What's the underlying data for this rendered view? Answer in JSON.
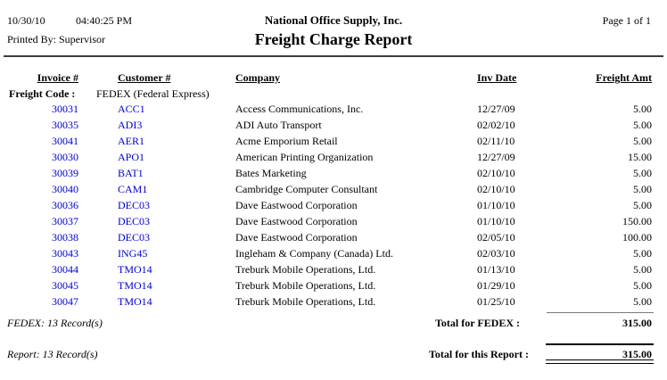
{
  "header": {
    "date": "10/30/10",
    "time": "04:40:25 PM",
    "printed_by": "Printed By: Supervisor",
    "company_name": "National Office Supply, Inc.",
    "report_title": "Freight Charge Report",
    "page_info": "Page 1 of 1"
  },
  "table": {
    "columns": [
      "Invoice #",
      "Customer #",
      "Company",
      "Inv Date",
      "Freight Amt"
    ],
    "group_header": {
      "label": "Freight Code :",
      "value": "FEDEX (Federal Express)"
    },
    "rows": [
      {
        "invoice": "30031",
        "customer": "ACC1",
        "company": "Access Communications, Inc.",
        "inv_date": "12/27/09",
        "freight_amt": "5.00"
      },
      {
        "invoice": "30035",
        "customer": "ADI3",
        "company": "ADI Auto Transport",
        "inv_date": "02/02/10",
        "freight_amt": "5.00"
      },
      {
        "invoice": "30041",
        "customer": "AER1",
        "company": "Acme Emporium Retail",
        "inv_date": "02/11/10",
        "freight_amt": "5.00"
      },
      {
        "invoice": "30030",
        "customer": "APO1",
        "company": "American Printing Organization",
        "inv_date": "12/27/09",
        "freight_amt": "15.00"
      },
      {
        "invoice": "30039",
        "customer": "BAT1",
        "company": "Bates Marketing",
        "inv_date": "02/10/10",
        "freight_amt": "5.00"
      },
      {
        "invoice": "30040",
        "customer": "CAM1",
        "company": "Cambridge Computer Consultant",
        "inv_date": "02/10/10",
        "freight_amt": "5.00"
      },
      {
        "invoice": "30036",
        "customer": "DEC03",
        "company": "Dave Eastwood Corporation",
        "inv_date": "01/10/10",
        "freight_amt": "5.00"
      },
      {
        "invoice": "30037",
        "customer": "DEC03",
        "company": "Dave Eastwood Corporation",
        "inv_date": "01/10/10",
        "freight_amt": "150.00"
      },
      {
        "invoice": "30038",
        "customer": "DEC03",
        "company": "Dave Eastwood Corporation",
        "inv_date": "02/05/10",
        "freight_amt": "100.00"
      },
      {
        "invoice": "30043",
        "customer": "ING45",
        "company": "Ingleham & Company (Canada) Ltd.",
        "inv_date": "02/03/10",
        "freight_amt": "5.00"
      },
      {
        "invoice": "30044",
        "customer": "TMO14",
        "company": "Treburk Mobile Operations, Ltd.",
        "inv_date": "01/13/10",
        "freight_amt": "5.00"
      },
      {
        "invoice": "30045",
        "customer": "TMO14",
        "company": "Treburk Mobile Operations, Ltd.",
        "inv_date": "01/29/10",
        "freight_amt": "5.00"
      },
      {
        "invoice": "30047",
        "customer": "TMO14",
        "company": "Treburk Mobile Operations, Ltd.",
        "inv_date": "01/25/10",
        "freight_amt": "5.00"
      }
    ]
  },
  "group_footer": {
    "record_count": "FEDEX: 13 Record(s)",
    "total_label": "Total for FEDEX :",
    "total_value": "315.00"
  },
  "report_footer": {
    "record_count": "Report: 13 Record(s)",
    "total_label": "Total for this Report :",
    "total_value": "315.00"
  },
  "colors": {
    "link_blue": "#0000CC",
    "text": "#000000",
    "rule_dark": "#3c3c3c",
    "rule_gray": "#7a7a7a"
  }
}
